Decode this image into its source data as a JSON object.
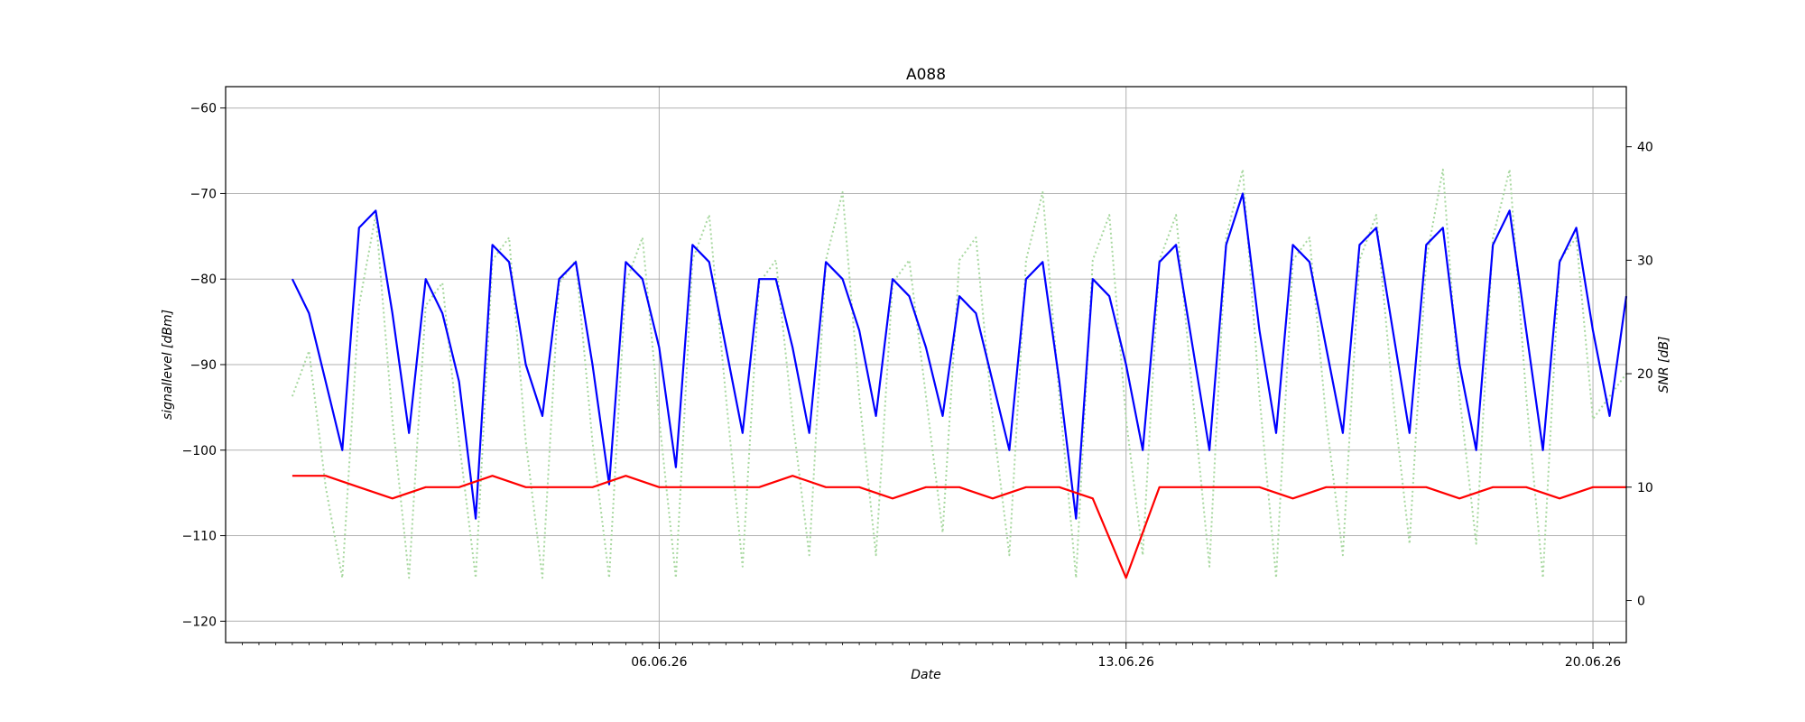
{
  "chart_data": {
    "type": "line",
    "title": "A088",
    "xlabel": "Date",
    "ylabel_left": "signallevel [dBm]",
    "ylabel_right": "SNR [dB]",
    "x_range": [
      "2026-05-30T12:00",
      "2026-06-20T12:00"
    ],
    "x_ticks": [
      {
        "date": "2026-06-06",
        "label": "06.06.26"
      },
      {
        "date": "2026-06-13",
        "label": "13.06.26"
      },
      {
        "date": "2026-06-20",
        "label": "20.06.26"
      }
    ],
    "ylim_left": [
      -122.5,
      -57.5
    ],
    "yticks_left": [
      -60,
      -70,
      -80,
      -90,
      -100,
      -110,
      -120
    ],
    "ylim_right": [
      -3.7,
      45.3
    ],
    "yticks_right": [
      0,
      10,
      20,
      30,
      40
    ],
    "grid": true,
    "series": [
      {
        "axis": "left",
        "color": "#0000ff",
        "style": "solid",
        "points": [
          [
            "2026-05-31T12:00",
            -80
          ],
          [
            "2026-05-31T18:00",
            -84
          ],
          [
            "2026-06-01T00:00",
            -92
          ],
          [
            "2026-06-01T06:00",
            -100
          ],
          [
            "2026-06-01T12:00",
            -74
          ],
          [
            "2026-06-01T18:00",
            -72
          ],
          [
            "2026-06-02T00:00",
            -84
          ],
          [
            "2026-06-02T06:00",
            -98
          ],
          [
            "2026-06-02T12:00",
            -80
          ],
          [
            "2026-06-02T18:00",
            -84
          ],
          [
            "2026-06-03T00:00",
            -92
          ],
          [
            "2026-06-03T06:00",
            -108
          ],
          [
            "2026-06-03T12:00",
            -76
          ],
          [
            "2026-06-03T18:00",
            -78
          ],
          [
            "2026-06-04T00:00",
            -90
          ],
          [
            "2026-06-04T06:00",
            -96
          ],
          [
            "2026-06-04T12:00",
            -80
          ],
          [
            "2026-06-04T18:00",
            -78
          ],
          [
            "2026-06-05T00:00",
            -90
          ],
          [
            "2026-06-05T06:00",
            -104
          ],
          [
            "2026-06-05T12:00",
            -78
          ],
          [
            "2026-06-05T18:00",
            -80
          ],
          [
            "2026-06-06T00:00",
            -88
          ],
          [
            "2026-06-06T06:00",
            -102
          ],
          [
            "2026-06-06T12:00",
            -76
          ],
          [
            "2026-06-06T18:00",
            -78
          ],
          [
            "2026-06-07T00:00",
            -88
          ],
          [
            "2026-06-07T06:00",
            -98
          ],
          [
            "2026-06-07T12:00",
            -80
          ],
          [
            "2026-06-07T18:00",
            -80
          ],
          [
            "2026-06-08T00:00",
            -88
          ],
          [
            "2026-06-08T06:00",
            -98
          ],
          [
            "2026-06-08T12:00",
            -78
          ],
          [
            "2026-06-08T18:00",
            -80
          ],
          [
            "2026-06-09T00:00",
            -86
          ],
          [
            "2026-06-09T06:00",
            -96
          ],
          [
            "2026-06-09T12:00",
            -80
          ],
          [
            "2026-06-09T18:00",
            -82
          ],
          [
            "2026-06-10T00:00",
            -88
          ],
          [
            "2026-06-10T06:00",
            -96
          ],
          [
            "2026-06-10T12:00",
            -82
          ],
          [
            "2026-06-10T18:00",
            -84
          ],
          [
            "2026-06-11T00:00",
            -92
          ],
          [
            "2026-06-11T06:00",
            -100
          ],
          [
            "2026-06-11T12:00",
            -80
          ],
          [
            "2026-06-11T18:00",
            -78
          ],
          [
            "2026-06-12T00:00",
            -92
          ],
          [
            "2026-06-12T06:00",
            -108
          ],
          [
            "2026-06-12T12:00",
            -80
          ],
          [
            "2026-06-12T18:00",
            -82
          ],
          [
            "2026-06-13T00:00",
            -90
          ],
          [
            "2026-06-13T06:00",
            -100
          ],
          [
            "2026-06-13T12:00",
            -78
          ],
          [
            "2026-06-13T18:00",
            -76
          ],
          [
            "2026-06-14T00:00",
            -88
          ],
          [
            "2026-06-14T06:00",
            -100
          ],
          [
            "2026-06-14T12:00",
            -76
          ],
          [
            "2026-06-14T18:00",
            -70
          ],
          [
            "2026-06-15T00:00",
            -86
          ],
          [
            "2026-06-15T06:00",
            -98
          ],
          [
            "2026-06-15T12:00",
            -76
          ],
          [
            "2026-06-15T18:00",
            -78
          ],
          [
            "2026-06-16T00:00",
            -88
          ],
          [
            "2026-06-16T06:00",
            -98
          ],
          [
            "2026-06-16T12:00",
            -76
          ],
          [
            "2026-06-16T18:00",
            -74
          ],
          [
            "2026-06-17T00:00",
            -86
          ],
          [
            "2026-06-17T06:00",
            -98
          ],
          [
            "2026-06-17T12:00",
            -76
          ],
          [
            "2026-06-17T18:00",
            -74
          ],
          [
            "2026-06-18T00:00",
            -90
          ],
          [
            "2026-06-18T06:00",
            -100
          ],
          [
            "2026-06-18T12:00",
            -76
          ],
          [
            "2026-06-18T18:00",
            -72
          ],
          [
            "2026-06-19T00:00",
            -86
          ],
          [
            "2026-06-19T06:00",
            -100
          ],
          [
            "2026-06-19T12:00",
            -78
          ],
          [
            "2026-06-19T18:00",
            -74
          ],
          [
            "2026-06-20T00:00",
            -86
          ],
          [
            "2026-06-20T06:00",
            -96
          ],
          [
            "2026-06-20T12:00",
            -82
          ]
        ]
      },
      {
        "axis": "right",
        "color": "#ff0000",
        "style": "solid",
        "points": [
          [
            "2026-05-31T12:00",
            11
          ],
          [
            "2026-06-01T00:00",
            11
          ],
          [
            "2026-06-01T12:00",
            10
          ],
          [
            "2026-06-02T00:00",
            9
          ],
          [
            "2026-06-02T12:00",
            10
          ],
          [
            "2026-06-03T00:00",
            10
          ],
          [
            "2026-06-03T12:00",
            11
          ],
          [
            "2026-06-04T00:00",
            10
          ],
          [
            "2026-06-04T12:00",
            10
          ],
          [
            "2026-06-05T00:00",
            10
          ],
          [
            "2026-06-05T12:00",
            11
          ],
          [
            "2026-06-06T00:00",
            10
          ],
          [
            "2026-06-06T12:00",
            10
          ],
          [
            "2026-06-07T00:00",
            10
          ],
          [
            "2026-06-07T12:00",
            10
          ],
          [
            "2026-06-08T00:00",
            11
          ],
          [
            "2026-06-08T12:00",
            10
          ],
          [
            "2026-06-09T00:00",
            10
          ],
          [
            "2026-06-09T12:00",
            9
          ],
          [
            "2026-06-10T00:00",
            10
          ],
          [
            "2026-06-10T12:00",
            10
          ],
          [
            "2026-06-11T00:00",
            9
          ],
          [
            "2026-06-11T12:00",
            10
          ],
          [
            "2026-06-12T00:00",
            10
          ],
          [
            "2026-06-12T12:00",
            9
          ],
          [
            "2026-06-13T00:00",
            2
          ],
          [
            "2026-06-13T12:00",
            10
          ],
          [
            "2026-06-14T00:00",
            10
          ],
          [
            "2026-06-14T12:00",
            10
          ],
          [
            "2026-06-15T00:00",
            10
          ],
          [
            "2026-06-15T12:00",
            9
          ],
          [
            "2026-06-16T00:00",
            10
          ],
          [
            "2026-06-16T12:00",
            10
          ],
          [
            "2026-06-17T00:00",
            10
          ],
          [
            "2026-06-17T12:00",
            10
          ],
          [
            "2026-06-18T00:00",
            9
          ],
          [
            "2026-06-18T12:00",
            10
          ],
          [
            "2026-06-19T00:00",
            10
          ],
          [
            "2026-06-19T12:00",
            9
          ],
          [
            "2026-06-20T00:00",
            10
          ],
          [
            "2026-06-20T12:00",
            10
          ]
        ]
      },
      {
        "axis": "right",
        "color": "#a8d8a0",
        "style": "dotted",
        "points": [
          [
            "2026-05-31T12:00",
            18
          ],
          [
            "2026-05-31T18:00",
            22
          ],
          [
            "2026-06-01T00:00",
            10
          ],
          [
            "2026-06-01T06:00",
            2
          ],
          [
            "2026-06-01T12:00",
            26
          ],
          [
            "2026-06-01T18:00",
            34
          ],
          [
            "2026-06-02T00:00",
            16
          ],
          [
            "2026-06-02T06:00",
            2
          ],
          [
            "2026-06-02T12:00",
            26
          ],
          [
            "2026-06-02T18:00",
            28
          ],
          [
            "2026-06-03T00:00",
            14
          ],
          [
            "2026-06-03T06:00",
            2
          ],
          [
            "2026-06-03T12:00",
            30
          ],
          [
            "2026-06-03T18:00",
            32
          ],
          [
            "2026-06-04T00:00",
            14
          ],
          [
            "2026-06-04T06:00",
            2
          ],
          [
            "2026-06-04T12:00",
            28
          ],
          [
            "2026-06-04T18:00",
            30
          ],
          [
            "2026-06-05T00:00",
            14
          ],
          [
            "2026-06-05T06:00",
            2
          ],
          [
            "2026-06-05T12:00",
            28
          ],
          [
            "2026-06-05T18:00",
            32
          ],
          [
            "2026-06-06T00:00",
            16
          ],
          [
            "2026-06-06T06:00",
            2
          ],
          [
            "2026-06-06T12:00",
            30
          ],
          [
            "2026-06-06T18:00",
            34
          ],
          [
            "2026-06-07T00:00",
            18
          ],
          [
            "2026-06-07T06:00",
            3
          ],
          [
            "2026-06-07T12:00",
            28
          ],
          [
            "2026-06-07T18:00",
            30
          ],
          [
            "2026-06-08T00:00",
            16
          ],
          [
            "2026-06-08T06:00",
            4
          ],
          [
            "2026-06-08T12:00",
            30
          ],
          [
            "2026-06-08T18:00",
            36
          ],
          [
            "2026-06-09T00:00",
            18
          ],
          [
            "2026-06-09T06:00",
            4
          ],
          [
            "2026-06-09T12:00",
            28
          ],
          [
            "2026-06-09T18:00",
            30
          ],
          [
            "2026-06-10T00:00",
            18
          ],
          [
            "2026-06-10T06:00",
            6
          ],
          [
            "2026-06-10T12:00",
            30
          ],
          [
            "2026-06-10T18:00",
            32
          ],
          [
            "2026-06-11T00:00",
            16
          ],
          [
            "2026-06-11T06:00",
            4
          ],
          [
            "2026-06-11T12:00",
            30
          ],
          [
            "2026-06-11T18:00",
            36
          ],
          [
            "2026-06-12T00:00",
            18
          ],
          [
            "2026-06-12T06:00",
            2
          ],
          [
            "2026-06-12T12:00",
            30
          ],
          [
            "2026-06-12T18:00",
            34
          ],
          [
            "2026-06-13T00:00",
            16
          ],
          [
            "2026-06-13T06:00",
            4
          ],
          [
            "2026-06-13T12:00",
            30
          ],
          [
            "2026-06-13T18:00",
            34
          ],
          [
            "2026-06-14T00:00",
            18
          ],
          [
            "2026-06-14T06:00",
            3
          ],
          [
            "2026-06-14T12:00",
            32
          ],
          [
            "2026-06-14T18:00",
            38
          ],
          [
            "2026-06-15T00:00",
            18
          ],
          [
            "2026-06-15T06:00",
            2
          ],
          [
            "2026-06-15T12:00",
            30
          ],
          [
            "2026-06-15T18:00",
            32
          ],
          [
            "2026-06-16T00:00",
            16
          ],
          [
            "2026-06-16T06:00",
            4
          ],
          [
            "2026-06-16T12:00",
            30
          ],
          [
            "2026-06-16T18:00",
            34
          ],
          [
            "2026-06-17T00:00",
            18
          ],
          [
            "2026-06-17T06:00",
            5
          ],
          [
            "2026-06-17T12:00",
            30
          ],
          [
            "2026-06-17T18:00",
            38
          ],
          [
            "2026-06-18T00:00",
            18
          ],
          [
            "2026-06-18T06:00",
            5
          ],
          [
            "2026-06-18T12:00",
            32
          ],
          [
            "2026-06-18T18:00",
            38
          ],
          [
            "2026-06-19T00:00",
            18
          ],
          [
            "2026-06-19T06:00",
            2
          ],
          [
            "2026-06-19T12:00",
            30
          ],
          [
            "2026-06-19T18:00",
            32
          ],
          [
            "2026-06-20T00:00",
            16
          ],
          [
            "2026-06-20T06:00",
            18
          ],
          [
            "2026-06-20T12:00",
            20
          ]
        ]
      }
    ]
  }
}
